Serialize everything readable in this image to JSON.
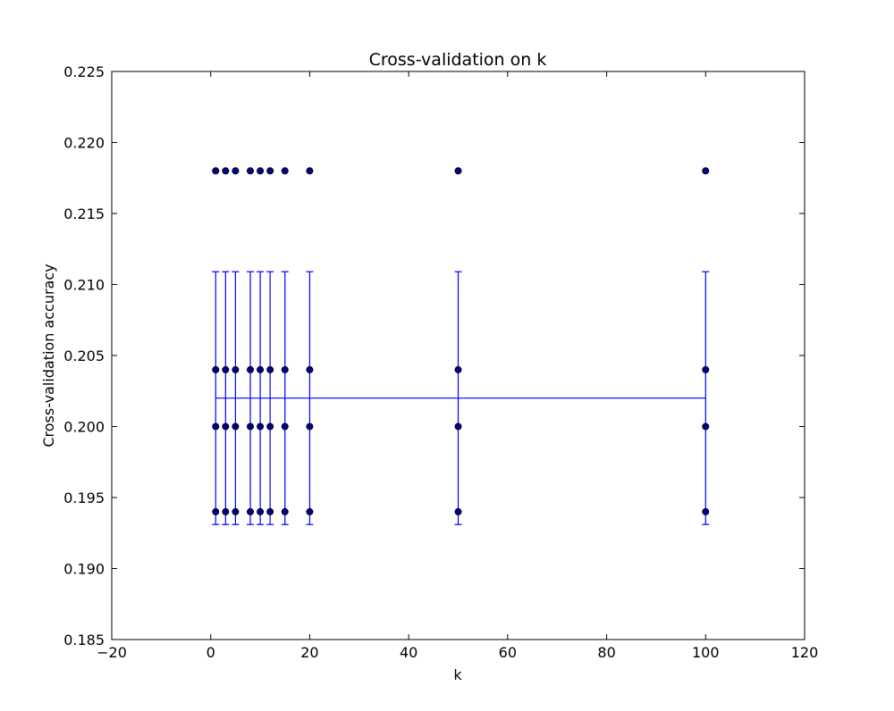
{
  "chart_data": {
    "type": "scatter",
    "title": "Cross-validation on k",
    "xlabel": "k",
    "ylabel": "Cross-validation accuracy",
    "xlim": [
      -20,
      120
    ],
    "ylim": [
      0.185,
      0.225
    ],
    "xticks": [
      -20,
      0,
      20,
      40,
      60,
      80,
      100,
      120
    ],
    "xtick_labels": [
      "−20",
      "0",
      "20",
      "40",
      "60",
      "80",
      "100",
      "120"
    ],
    "yticks": [
      0.185,
      0.19,
      0.195,
      0.2,
      0.205,
      0.21,
      0.215,
      0.22,
      0.225
    ],
    "ytick_labels": [
      "0.185",
      "0.190",
      "0.195",
      "0.200",
      "0.205",
      "0.210",
      "0.215",
      "0.220",
      "0.225"
    ],
    "grid": false,
    "colors": {
      "points": "#00008b",
      "errorbar": "#0000ff",
      "axes": "#000000"
    },
    "scatter_points": [
      {
        "x": 1,
        "y": [
          0.194,
          0.2,
          0.204,
          0.218
        ]
      },
      {
        "x": 3,
        "y": [
          0.194,
          0.2,
          0.204,
          0.218
        ]
      },
      {
        "x": 5,
        "y": [
          0.194,
          0.2,
          0.204,
          0.218
        ]
      },
      {
        "x": 8,
        "y": [
          0.194,
          0.2,
          0.204,
          0.218
        ]
      },
      {
        "x": 10,
        "y": [
          0.194,
          0.2,
          0.204,
          0.218
        ]
      },
      {
        "x": 12,
        "y": [
          0.194,
          0.2,
          0.204,
          0.218
        ]
      },
      {
        "x": 15,
        "y": [
          0.194,
          0.2,
          0.204,
          0.218
        ]
      },
      {
        "x": 20,
        "y": [
          0.194,
          0.2,
          0.204,
          0.218
        ]
      },
      {
        "x": 50,
        "y": [
          0.194,
          0.2,
          0.204,
          0.218
        ]
      },
      {
        "x": 100,
        "y": [
          0.194,
          0.2,
          0.204,
          0.218
        ]
      }
    ],
    "errorbar": {
      "x": [
        1,
        3,
        5,
        8,
        10,
        12,
        15,
        20,
        50,
        100
      ],
      "mean": [
        0.202,
        0.202,
        0.202,
        0.202,
        0.202,
        0.202,
        0.202,
        0.202,
        0.202,
        0.202
      ],
      "std": [
        0.0089,
        0.0089,
        0.0089,
        0.0089,
        0.0089,
        0.0089,
        0.0089,
        0.0089,
        0.0089,
        0.0089
      ]
    }
  }
}
